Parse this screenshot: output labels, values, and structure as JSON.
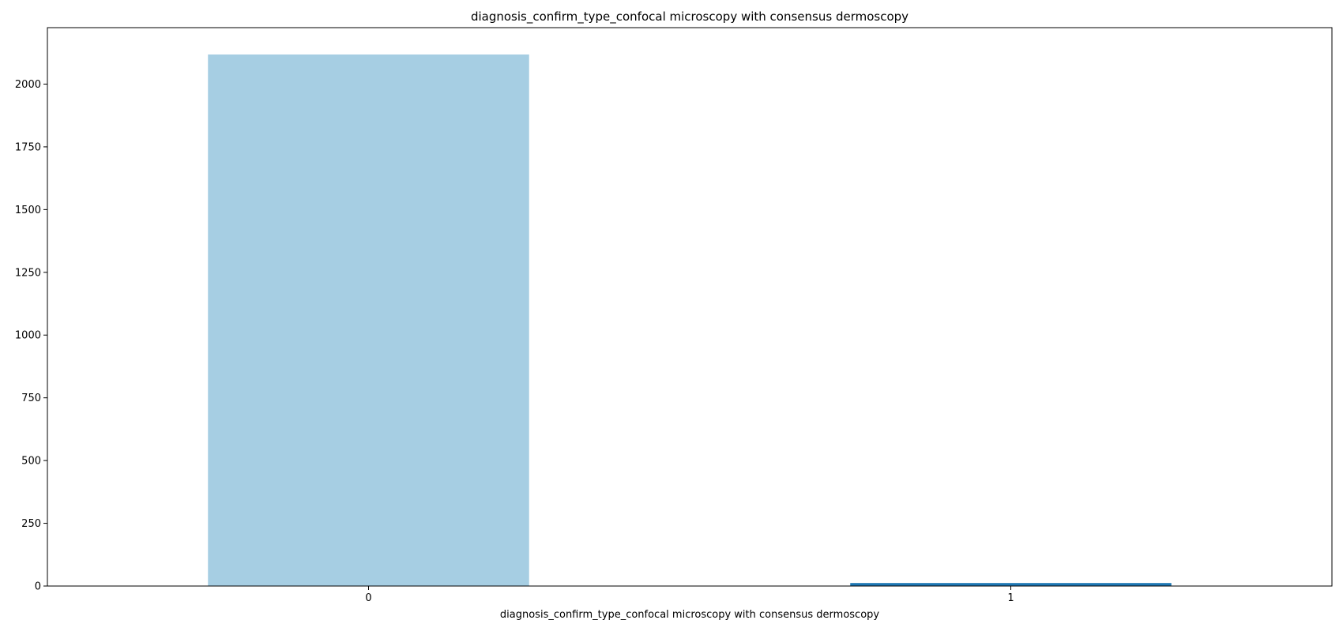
{
  "chart_data": {
    "type": "bar",
    "title": "diagnosis_confirm_type_confocal microscopy with consensus dermoscopy",
    "xlabel": "diagnosis_confirm_type_confocal microscopy with consensus dermoscopy",
    "ylabel": "",
    "categories": [
      "0",
      "1"
    ],
    "values": [
      2118,
      12
    ],
    "bar_colors": [
      "#a6cee3",
      "#1f78b4"
    ],
    "ylim": [
      0,
      2225
    ],
    "yticks": [
      0,
      250,
      500,
      750,
      1000,
      1250,
      1500,
      1750,
      2000
    ],
    "grid": false,
    "legend": "none"
  }
}
